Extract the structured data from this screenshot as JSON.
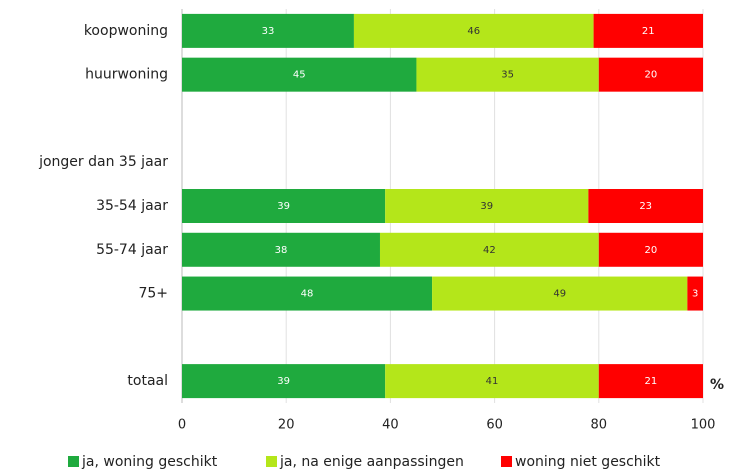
{
  "chart_data": {
    "type": "stacked_barh",
    "categories": [
      "koopwoning",
      "huurwoning",
      null,
      "jonger dan 35 jaar",
      "35-54 jaar",
      "55-74 jaar",
      "75+",
      null,
      "totaal"
    ],
    "series": [
      {
        "name": "ja, woning geschikt",
        "color": "#1faa3e",
        "label_color": "#ffffff",
        "values": [
          33,
          45,
          null,
          null,
          39,
          38,
          48,
          null,
          39
        ]
      },
      {
        "name": "ja, na enige aanpassingen",
        "color": "#b4e61a",
        "label_color": "#333333",
        "values": [
          46,
          35,
          null,
          null,
          39,
          42,
          49,
          null,
          41
        ]
      },
      {
        "name": "woning niet geschikt",
        "color": "#ff0000",
        "label_color": "#ffffff",
        "values": [
          21,
          20,
          null,
          null,
          23,
          20,
          3,
          null,
          21
        ]
      }
    ],
    "xlim": [
      0,
      100
    ],
    "xticks": [
      0,
      20,
      40,
      60,
      80,
      100
    ],
    "x_unit": "%",
    "grid": true
  }
}
